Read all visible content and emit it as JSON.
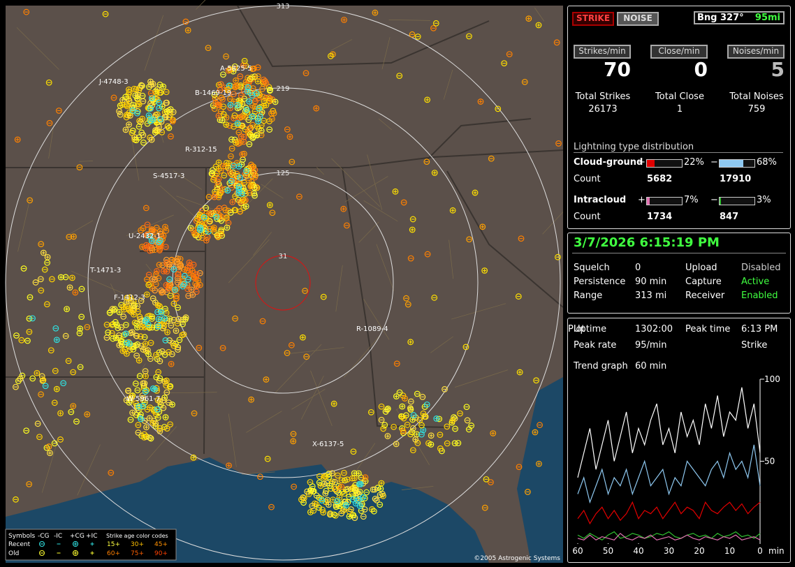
{
  "map": {
    "ring_labels": [
      "313",
      "219",
      "125",
      "31"
    ],
    "cells": [
      "A-5825-5",
      "J-4748-3",
      "B-1469-19",
      "R-312-15",
      "S-4517-3",
      "U-2432-1",
      "T-1471-3",
      "F-1412-3",
      "W-5961-7",
      "R-1089-4",
      "X-6137-5"
    ],
    "legend": {
      "symbols": "Symbols",
      "types": [
        "-CG",
        "-IC",
        "+CG",
        "+IC"
      ],
      "age_title": "Strike age color codes",
      "rows": [
        "Recent",
        "Old"
      ],
      "ages": [
        [
          "15+",
          "30+",
          "45+"
        ],
        [
          "60+",
          "75+",
          "90+"
        ]
      ]
    },
    "copyright": "©2005 Astrogenic Systems"
  },
  "status": {
    "modes": [
      "STRIKE",
      "NOISE"
    ],
    "bearing": "Bng 327°",
    "distance": "95mi",
    "rates": [
      {
        "button": "Strikes/min",
        "value": 70,
        "total_label": "Total Strikes",
        "total": 26173
      },
      {
        "button": "Close/min",
        "value": 0,
        "total_label": "Total Close",
        "total": 1
      },
      {
        "button": "Noises/min",
        "value": 5,
        "total_label": "Total Noises",
        "total": 759
      }
    ],
    "distribution": {
      "title": "Lightning type distribution",
      "rows": [
        {
          "name": "Cloud-ground",
          "signs": [
            "+",
            "−"
          ],
          "values": [
            22,
            68
          ],
          "value_labels": [
            "22%",
            "68%"
          ],
          "colors": [
            "#e00000",
            "#8ec8f0"
          ],
          "count_label": "Count",
          "counts": [
            5682,
            17910
          ]
        },
        {
          "name": "Intracloud",
          "signs": [
            "+",
            "−"
          ],
          "values": [
            7,
            3
          ],
          "value_labels": [
            "7%",
            "3%"
          ],
          "colors": [
            "#e070b0",
            "#30c030"
          ],
          "count_label": "Count",
          "counts": [
            1734,
            847
          ]
        }
      ]
    }
  },
  "clock": {
    "datetime": "3/7/2026 6:15:19 PM",
    "settings": [
      [
        "Squelch",
        "0",
        "Upload",
        "Disabled"
      ],
      [
        "Persistence",
        "90 min",
        "Capture",
        "Active"
      ],
      [
        "Range",
        "313 mi",
        "Receiver",
        "Enabled"
      ]
    ]
  },
  "stats": {
    "rows": [
      [
        "Uptime",
        "1302:00",
        "Peak time",
        "6:13 PM",
        "Plot"
      ],
      [
        "Peak rate",
        "95/min",
        "Strike"
      ]
    ],
    "trend_label": "Trend graph",
    "trend_span": "60 min"
  },
  "trend": {
    "type": "line",
    "x": [
      60,
      58,
      56,
      54,
      52,
      50,
      48,
      46,
      44,
      42,
      40,
      38,
      36,
      34,
      32,
      30,
      28,
      26,
      24,
      22,
      20,
      18,
      16,
      14,
      12,
      10,
      8,
      6,
      4,
      2,
      0
    ],
    "xlim": [
      60,
      0
    ],
    "xticks": [
      60,
      50,
      40,
      30,
      20,
      10,
      0
    ],
    "x_unit": "min",
    "ylim": [
      0,
      100
    ],
    "yticks": [
      50,
      100
    ],
    "series": [
      {
        "color": "#ffffff",
        "values": [
          40,
          55,
          70,
          45,
          60,
          75,
          50,
          65,
          80,
          55,
          70,
          60,
          75,
          85,
          60,
          70,
          55,
          80,
          65,
          75,
          60,
          85,
          70,
          90,
          65,
          80,
          75,
          95,
          70,
          85,
          55
        ]
      },
      {
        "color": "#8ec8f0",
        "values": [
          30,
          40,
          25,
          35,
          45,
          30,
          40,
          35,
          45,
          30,
          40,
          50,
          35,
          40,
          45,
          30,
          40,
          35,
          50,
          45,
          40,
          35,
          45,
          50,
          40,
          55,
          45,
          50,
          40,
          60,
          35
        ]
      },
      {
        "color": "#e00000",
        "values": [
          15,
          20,
          12,
          18,
          22,
          15,
          20,
          14,
          18,
          25,
          15,
          20,
          18,
          22,
          15,
          20,
          25,
          18,
          22,
          20,
          15,
          25,
          20,
          18,
          22,
          25,
          20,
          24,
          18,
          22,
          25
        ]
      },
      {
        "color": "#30c030",
        "values": [
          5,
          3,
          6,
          4,
          2,
          5,
          7,
          3,
          4,
          6,
          5,
          3,
          4,
          6,
          5,
          7,
          4,
          3,
          5,
          6,
          4,
          5,
          3,
          6,
          4,
          5,
          7,
          4,
          5,
          3,
          6
        ]
      },
      {
        "color": "#e070b0",
        "values": [
          3,
          2,
          5,
          2,
          4,
          3,
          2,
          6,
          3,
          2,
          4,
          3,
          5,
          2,
          3,
          4,
          2,
          3,
          5,
          3,
          2,
          4,
          3,
          2,
          4,
          3,
          5,
          2,
          3,
          4,
          2
        ]
      }
    ]
  }
}
